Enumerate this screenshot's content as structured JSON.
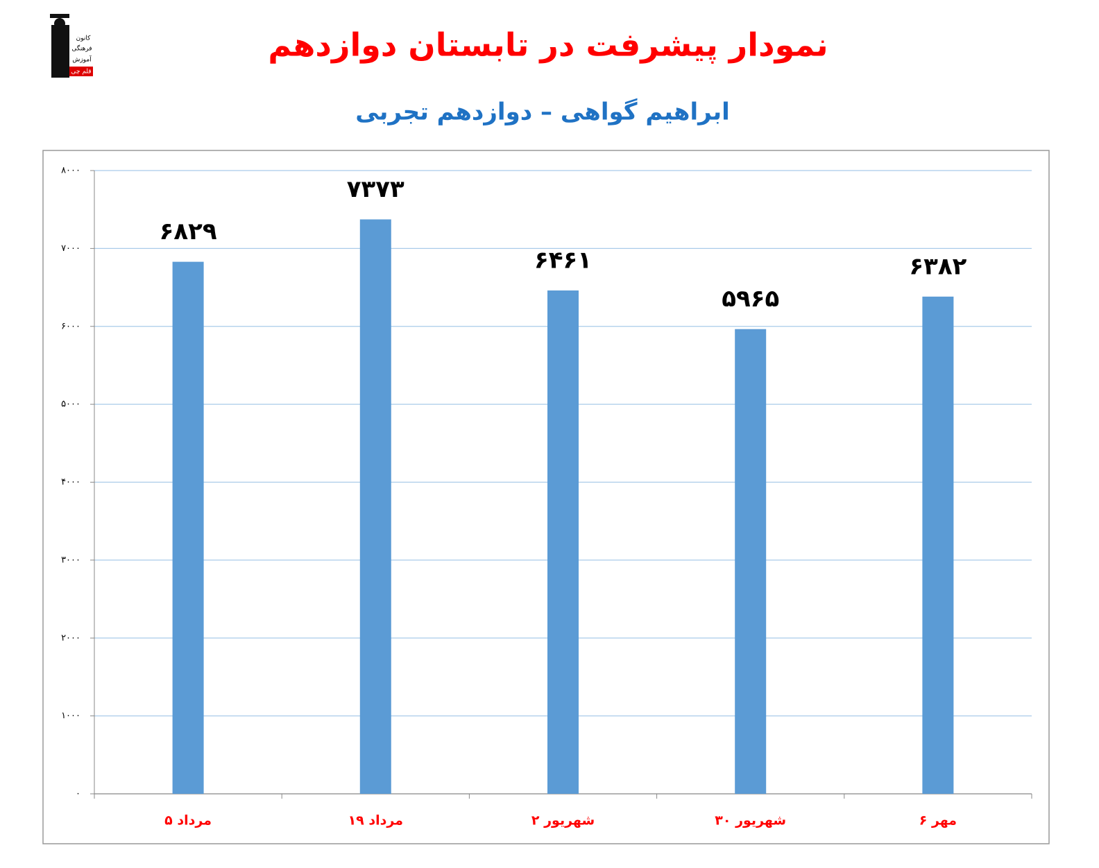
{
  "logo": [
    "کانون",
    "فرهنگی",
    "آموزش",
    "قلم چی"
  ],
  "chart_data": {
    "type": "bar",
    "title": "نمودار پیشرفت در تابستان دوازدهم",
    "subtitle": "ابراهیم گواهی – دوازدهم تجربی",
    "categories": [
      "۵ مرداد",
      "۱۹ مرداد",
      "۲ شهریور",
      "۳۰ شهریور",
      "۶ مهر"
    ],
    "values": [
      6829,
      7373,
      6461,
      5965,
      6382
    ],
    "value_labels": [
      "۶۸۲۹",
      "۷۳۷۳",
      "۶۴۶۱",
      "۵۹۶۵",
      "۶۳۸۲"
    ],
    "color": "#5b9bd5",
    "ylim": [
      0,
      8000
    ],
    "yticks": [
      {
        "value": 0,
        "label": "۰"
      },
      {
        "value": 1000,
        "label": "۱۰۰۰"
      },
      {
        "value": 2000,
        "label": "۲۰۰۰"
      },
      {
        "value": 3000,
        "label": "۳۰۰۰"
      },
      {
        "value": 4000,
        "label": "۴۰۰۰"
      },
      {
        "value": 5000,
        "label": "۵۰۰۰"
      },
      {
        "value": 6000,
        "label": "۶۰۰۰"
      },
      {
        "value": 7000,
        "label": "۷۰۰۰"
      },
      {
        "value": 8000,
        "label": "۸۰۰۰"
      }
    ],
    "grid": true
  }
}
